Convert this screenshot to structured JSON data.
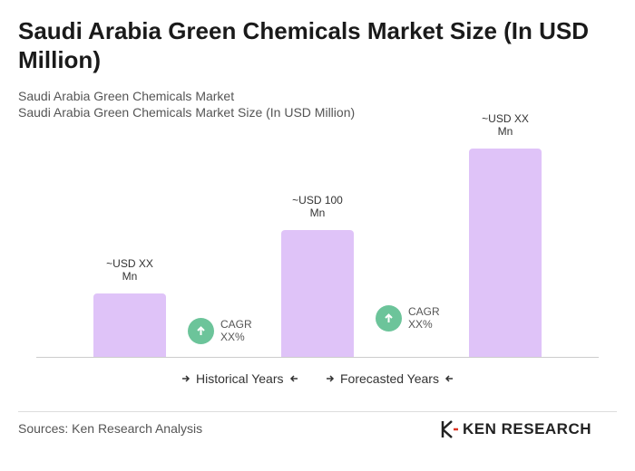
{
  "chart_data": {
    "type": "bar",
    "title": "Saudi Arabia Green Chemicals Market Size (In USD Million)",
    "subtitle": [
      "Saudi Arabia Green Chemicals Market",
      "Saudi Arabia Green Chemicals Market Size (In USD Million)"
    ],
    "categories": [
      null,
      null,
      null
    ],
    "values": [
      50,
      100,
      164
    ],
    "value_labels": [
      "~USD XX Mn",
      "~USD 100 Mn",
      "~USD XX Mn"
    ],
    "color": "#dfc3f8",
    "annotations": [
      "CAGR XX%",
      "CAGR XX%"
    ],
    "periods": [
      "Historical Years",
      "Forecasted Years"
    ],
    "source": "Sources: Ken Research Analysis",
    "logo": "KEN RESEARCH"
  }
}
